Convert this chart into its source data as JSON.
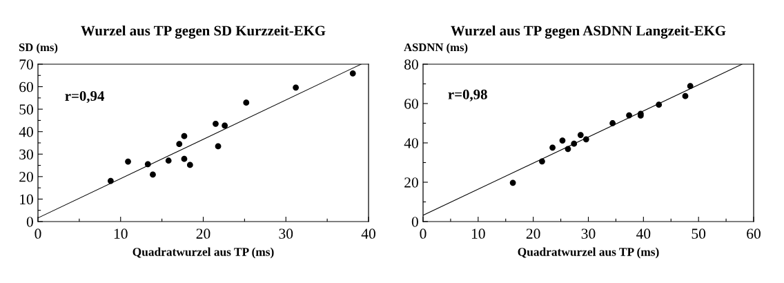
{
  "chart_data": [
    {
      "type": "scatter",
      "title": "Wurzel aus TP gegen SD Kurzzeit-EKG",
      "xlabel": "Quadratwurzel aus TP (ms)",
      "ylabel": "SD (ms)",
      "annotations": [
        "r=0,94"
      ],
      "xlim": [
        0,
        40
      ],
      "ylim": [
        0,
        70
      ],
      "xticks": [
        0,
        {
          "value": 5,
          "label": null
        },
        10,
        {
          "value": 15,
          "label": null
        },
        20,
        {
          "value": 25,
          "label": null
        },
        30,
        {
          "value": 35,
          "label": null
        },
        40
      ],
      "yticks": [
        0,
        {
          "value": 5,
          "label": null
        },
        10,
        {
          "value": 15,
          "label": null
        },
        20,
        {
          "value": 25,
          "label": null
        },
        30,
        {
          "value": 35,
          "label": null
        },
        40,
        {
          "value": 45,
          "label": null
        },
        50,
        {
          "value": 55,
          "label": null
        },
        60,
        {
          "value": 65,
          "label": null
        },
        70
      ],
      "series": [
        {
          "marker": "circle",
          "color": "#000000",
          "x": [
            8.8,
            10.9,
            13.3,
            13.9,
            15.8,
            17.1,
            17.7,
            17.7,
            18.4,
            21.5,
            21.8,
            22.6,
            25.2,
            31.2,
            38.1
          ],
          "values": [
            18.1,
            26.7,
            25.5,
            20.9,
            27.1,
            34.5,
            38.0,
            27.9,
            25.2,
            43.5,
            33.5,
            42.7,
            52.9,
            59.6,
            65.9
          ]
        },
        {
          "type": "line",
          "color": "#000000",
          "x": [
            0,
            39.1
          ],
          "values": [
            1.6,
            70
          ]
        }
      ]
    },
    {
      "type": "scatter",
      "title": "Wurzel aus TP gegen ASDNN Langzeit-EKG",
      "xlabel": "Quadratwurzel aus TP (ms)",
      "ylabel": "ASDNN (ms)",
      "annotations": [
        "r=0,98"
      ],
      "xlim": [
        0,
        60
      ],
      "ylim": [
        0,
        80
      ],
      "xticks": [
        0,
        {
          "value": 5,
          "label": null
        },
        10,
        {
          "value": 15,
          "label": null
        },
        20,
        {
          "value": 25,
          "label": null
        },
        30,
        {
          "value": 35,
          "label": null
        },
        40,
        {
          "value": 45,
          "label": null
        },
        50,
        {
          "value": 55,
          "label": null
        },
        60
      ],
      "yticks": [
        0,
        {
          "value": 10,
          "label": null
        },
        20,
        {
          "value": 30,
          "label": null
        },
        40,
        {
          "value": 50,
          "label": null
        },
        60,
        {
          "value": 70,
          "label": null
        },
        80
      ],
      "series": [
        {
          "marker": "circle",
          "color": "#000000",
          "x": [
            16.3,
            21.6,
            23.5,
            25.3,
            26.3,
            27.4,
            28.6,
            29.6,
            34.4,
            37.4,
            39.5,
            39.5,
            42.8,
            47.6,
            48.5
          ],
          "values": [
            19.7,
            30.6,
            37.6,
            41.2,
            36.9,
            39.6,
            44.0,
            41.8,
            50.0,
            54.0,
            54.8,
            53.9,
            59.4,
            63.8,
            68.9
          ]
        },
        {
          "type": "line",
          "color": "#000000",
          "x": [
            0,
            57.9
          ],
          "values": [
            3.2,
            80
          ]
        }
      ]
    }
  ]
}
